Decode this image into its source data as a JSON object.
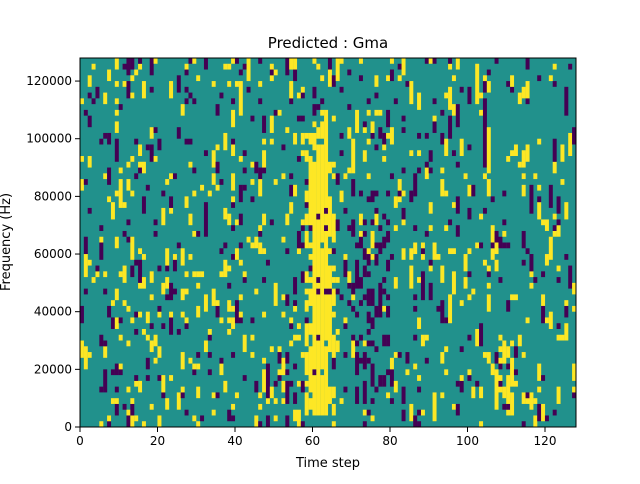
{
  "chart_data": {
    "type": "heatmap",
    "title": "Predicted : Gma",
    "xlabel": "Time step",
    "ylabel": "Frequency (Hz)",
    "xlim": [
      0,
      128
    ],
    "ylim": [
      0,
      128000
    ],
    "x_ticks": [
      0,
      20,
      40,
      60,
      80,
      100,
      120
    ],
    "y_ticks": [
      0,
      20000,
      40000,
      60000,
      80000,
      100000,
      120000
    ],
    "y_tick_labels": [
      "0",
      "20000",
      "40000",
      "60000",
      "80000",
      "100000",
      "120000"
    ],
    "colormap": "viridis",
    "levels": {
      "low": "#440154",
      "background": "#21918c",
      "high": "#fde725"
    },
    "grid": "64 frequency bins x 128 time steps, ternary activation map (-1 / 0 / +1)",
    "frequency_bin_hz": 2000,
    "high_activation_regions": [
      {
        "label": "dense burst",
        "time_step_range": [
          58,
          66
        ],
        "frequency_hz_range": [
          4000,
          110000
        ]
      },
      {
        "label": "late burst",
        "time_step_range": [
          107,
          112
        ],
        "frequency_hz_range": [
          4000,
          34000
        ]
      }
    ],
    "low_activation_regions": [
      {
        "label": "column cluster",
        "time_step_range": [
          70,
          80
        ],
        "frequency_hz_range": [
          8000,
          84000
        ]
      }
    ]
  }
}
